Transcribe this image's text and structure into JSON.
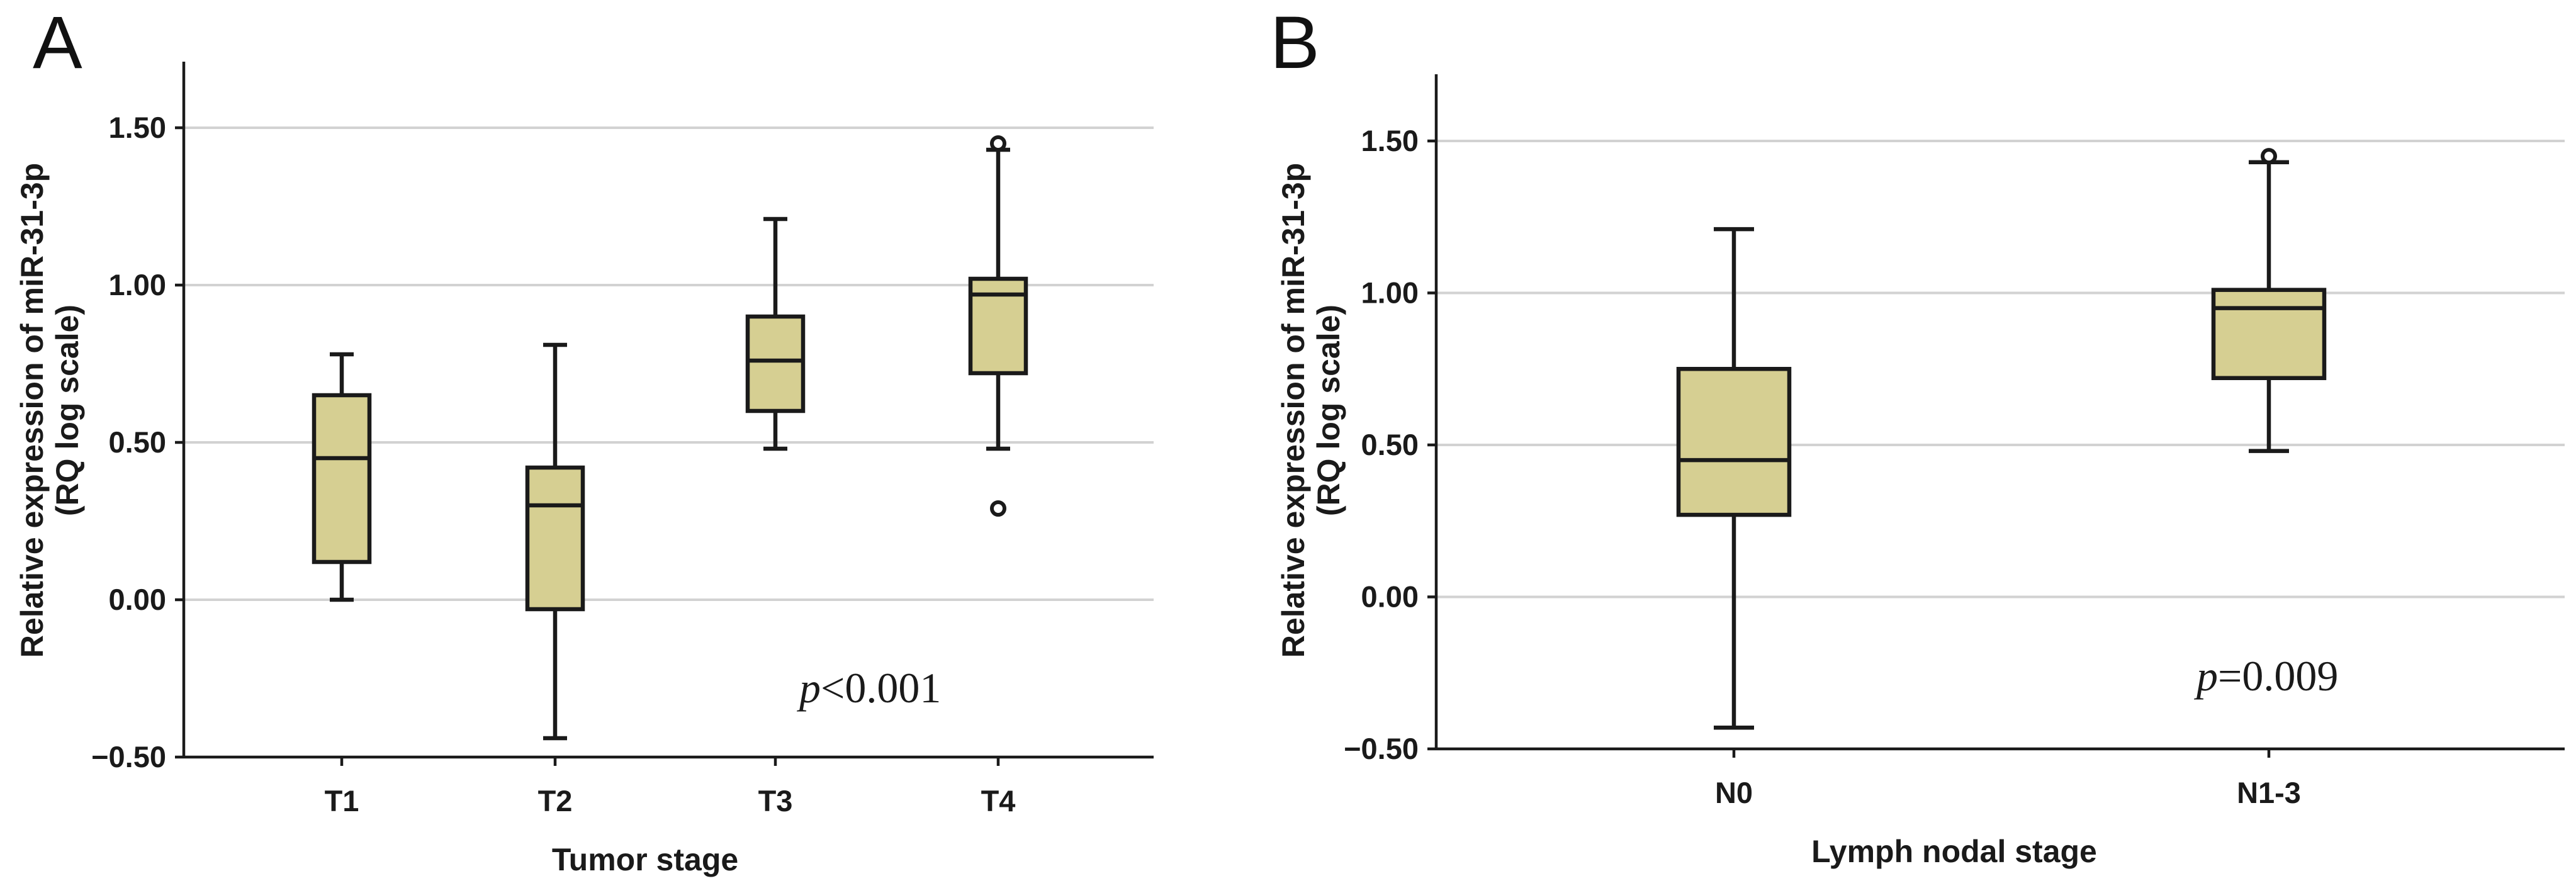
{
  "chart_data": [
    {
      "panel": "A",
      "type": "box",
      "categories": [
        "T1",
        "T2",
        "T3",
        "T4"
      ],
      "xlabel": "Tumor stage",
      "ylabel_lines": [
        "Relative expression of miR-31-3p",
        "(RQ log scale)"
      ],
      "ylim": [
        -0.5,
        1.72
      ],
      "yticks": [
        -0.5,
        0.0,
        0.5,
        1.0,
        1.5
      ],
      "ytick_labels": [
        "−0.50",
        "0.00",
        "0.50",
        "1.00",
        "1.50"
      ],
      "boxes": [
        {
          "category": "T1",
          "min": 0.0,
          "q1": 0.12,
          "median": 0.45,
          "q3": 0.65,
          "max": 0.78,
          "outliers": []
        },
        {
          "category": "T2",
          "min": -0.44,
          "q1": -0.03,
          "median": 0.3,
          "q3": 0.42,
          "max": 0.81,
          "outliers": []
        },
        {
          "category": "T3",
          "min": 0.48,
          "q1": 0.6,
          "median": 0.76,
          "q3": 0.9,
          "max": 1.21,
          "outliers": []
        },
        {
          "category": "T4",
          "min": 0.48,
          "q1": 0.72,
          "median": 0.97,
          "q3": 1.02,
          "max": 1.43,
          "outliers": [
            0.29,
            1.45
          ]
        }
      ],
      "annotation": {
        "italic": "p",
        "rest": "<0.001"
      },
      "box_color": "#d6cf92",
      "grid": true
    },
    {
      "panel": "B",
      "type": "box",
      "categories": [
        "N0",
        "N1-3"
      ],
      "xlabel": "Lymph nodal stage",
      "ylabel_lines": [
        "Relative expression of miR-31-3p",
        "(RQ log scale)"
      ],
      "ylim": [
        -0.5,
        1.72
      ],
      "yticks": [
        -0.5,
        0.0,
        0.5,
        1.0,
        1.5
      ],
      "ytick_labels": [
        "−0.50",
        "0.00",
        "0.50",
        "1.00",
        "1.50"
      ],
      "boxes": [
        {
          "category": "N0",
          "min": -0.43,
          "q1": 0.27,
          "median": 0.45,
          "q3": 0.75,
          "max": 1.21,
          "outliers": []
        },
        {
          "category": "N1-3",
          "min": 0.48,
          "q1": 0.72,
          "median": 0.95,
          "q3": 1.01,
          "max": 1.43,
          "outliers": [
            1.45
          ]
        }
      ],
      "annotation": {
        "italic": "p",
        "rest": "=0.009"
      },
      "box_color": "#d6cf92",
      "grid": true
    }
  ]
}
